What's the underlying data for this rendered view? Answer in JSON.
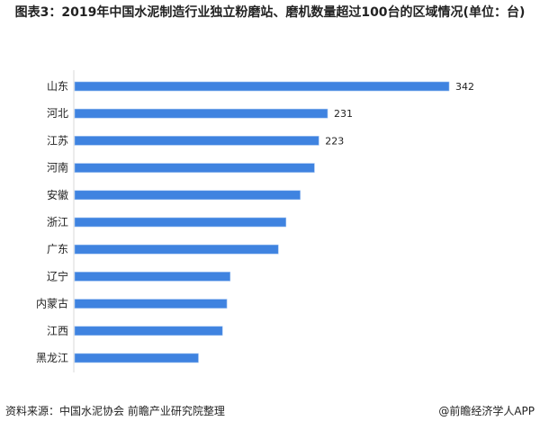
{
  "chart_data": {
    "type": "bar",
    "orientation": "horizontal",
    "title": "图表3：2019年中国水泥制造行业独立粉磨站、磨机数量超过100台的区域情况(单位：台)",
    "categories": [
      "山东",
      "河北",
      "江苏",
      "河南",
      "安徽",
      "浙江",
      "广东",
      "辽宁",
      "内蒙古",
      "江西",
      "黑龙江"
    ],
    "values": [
      342,
      231,
      223,
      219,
      206,
      193,
      186,
      142,
      139,
      135,
      113
    ],
    "data_labels": [
      "342",
      "231",
      "223",
      "",
      "",
      "",
      "",
      "",
      "",
      "",
      ""
    ],
    "xlim": [
      0,
      342
    ],
    "grid": false,
    "bar_color": "#3f83e0"
  },
  "footer": {
    "source": "资料来源：中国水泥协会 前瞻产业研究院整理",
    "credit": "@前瞻经济学人APP"
  }
}
